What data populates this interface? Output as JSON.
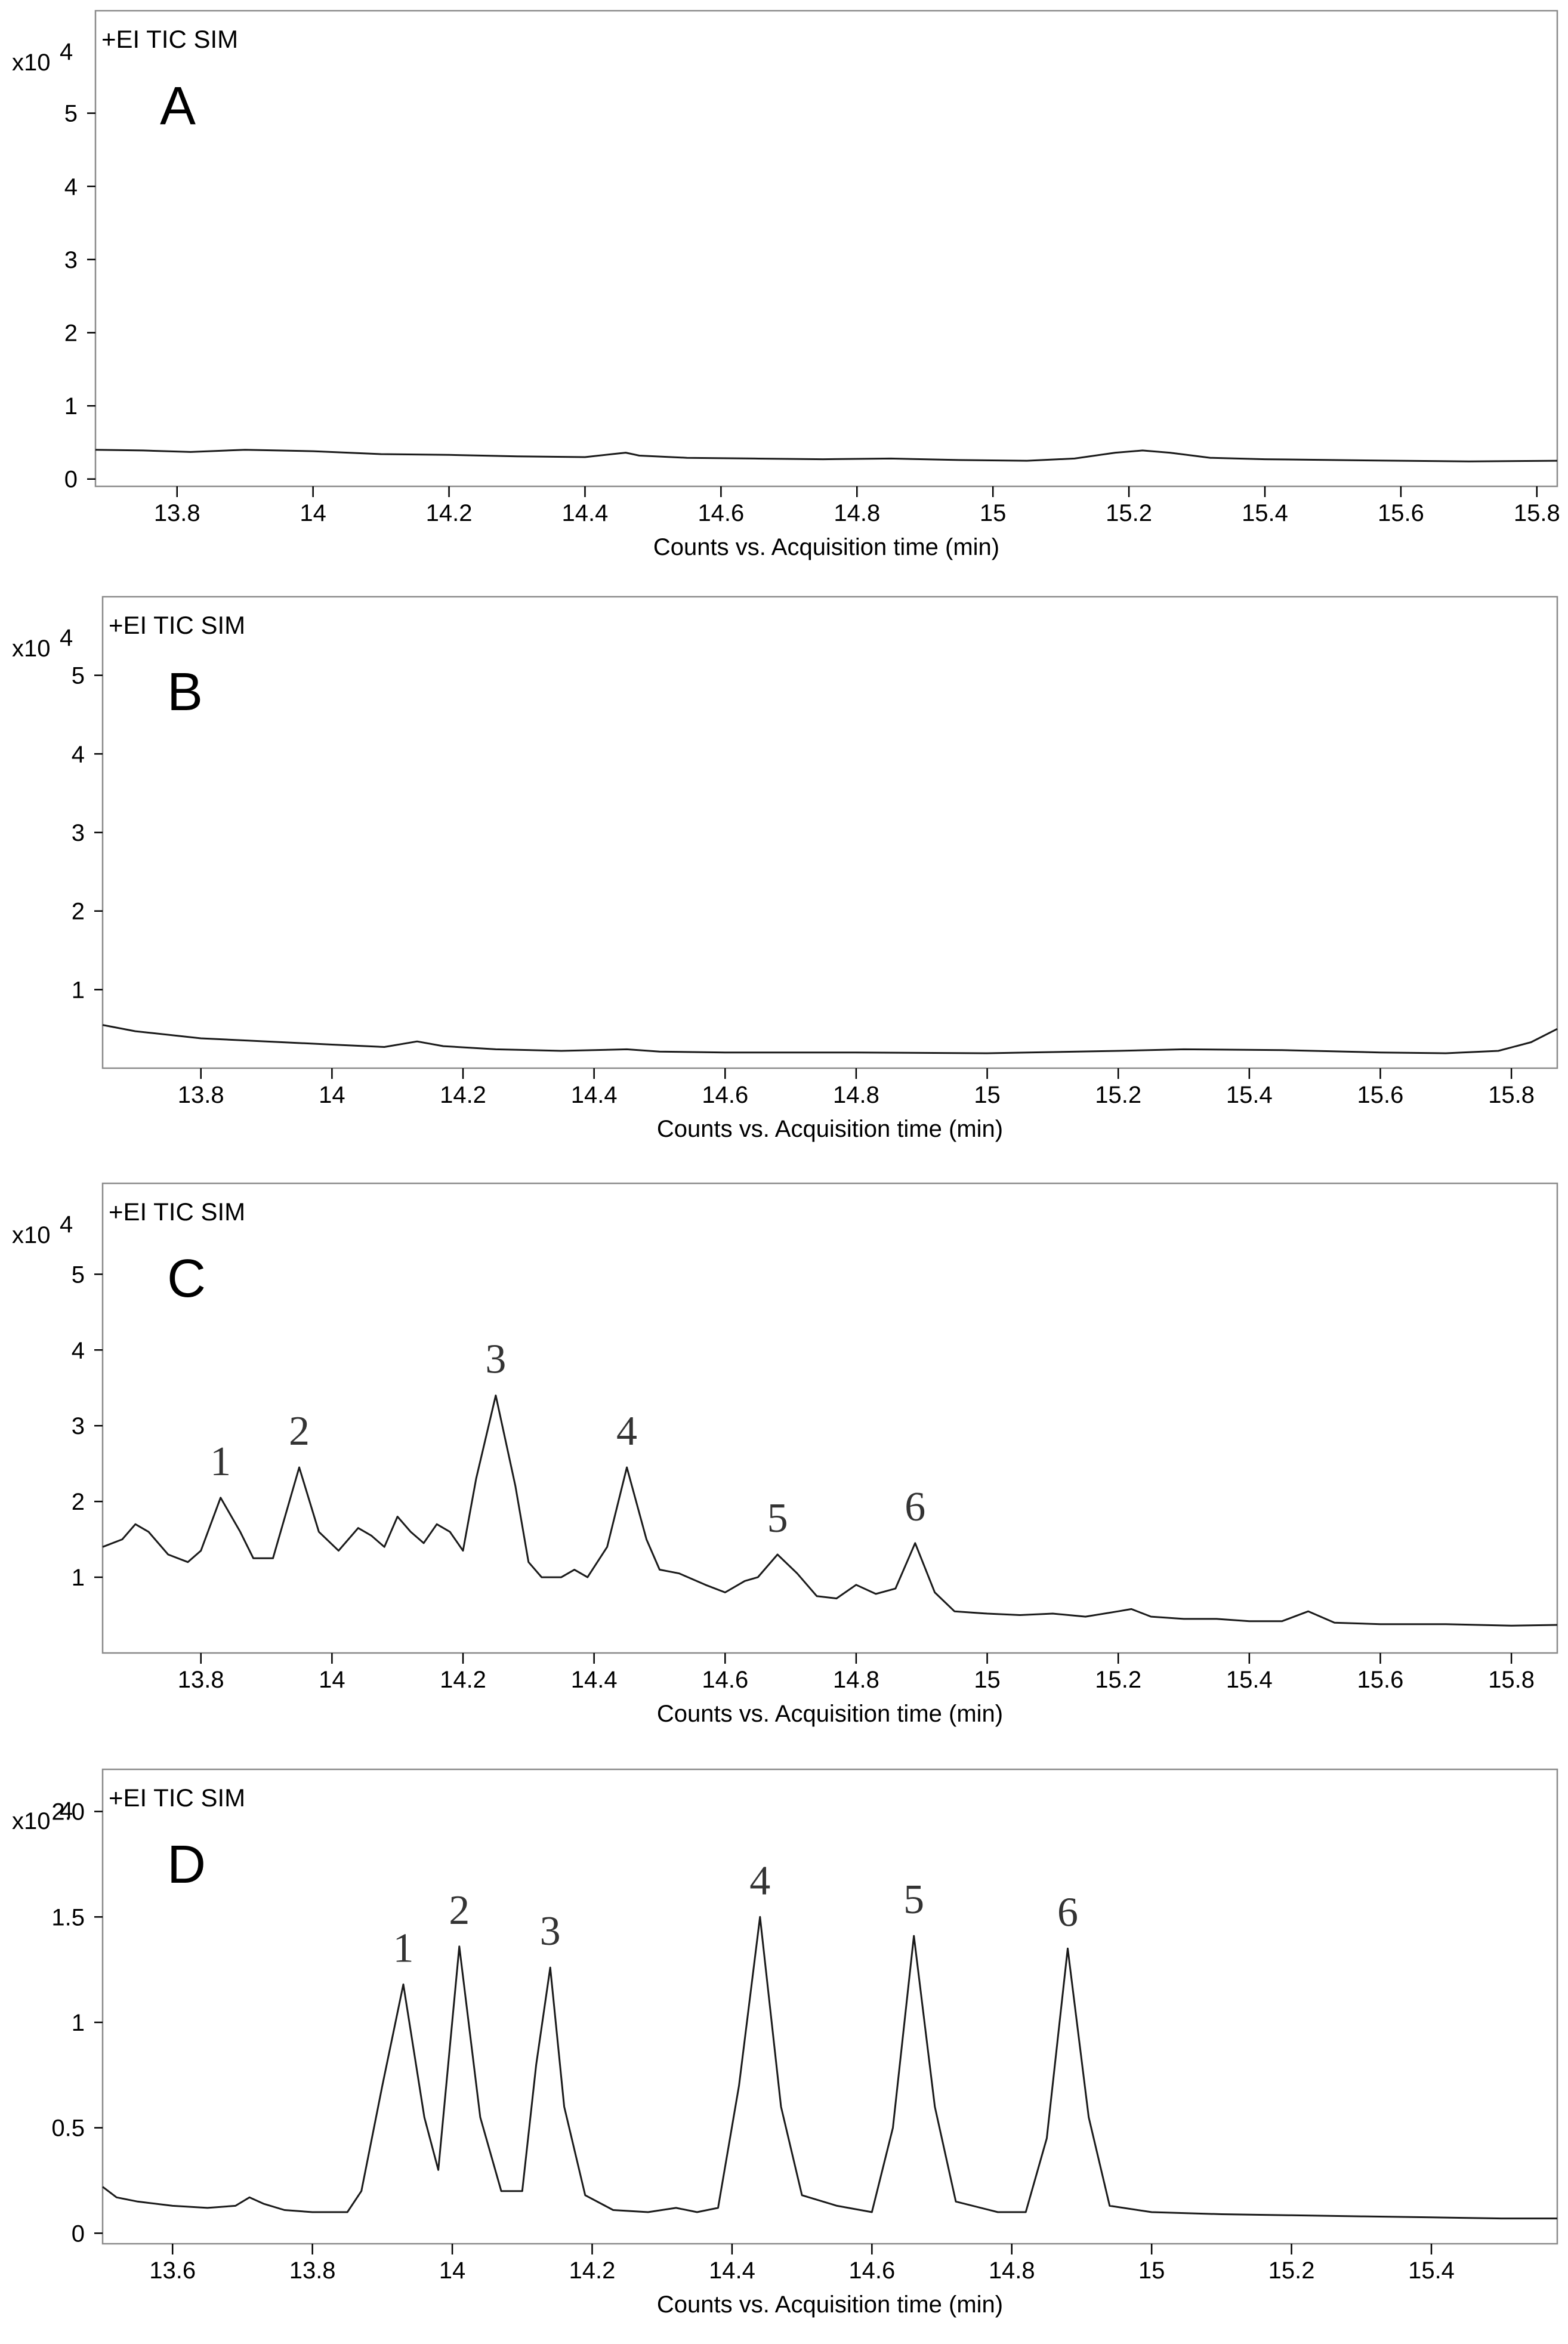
{
  "chart_data": [
    {
      "type": "line",
      "panel_label": "A",
      "header": "+EI TIC SIM",
      "y_multiplier": "x10",
      "y_multiplier_exp": "4",
      "xlabel": "Counts vs. Acquisition time (min)",
      "xlim": [
        13.68,
        15.83
      ],
      "ylim": [
        -0.1,
        6.4
      ],
      "xticks": [
        {
          "v": 13.8,
          "t": "13.8"
        },
        {
          "v": 14.0,
          "t": "14"
        },
        {
          "v": 14.2,
          "t": "14.2"
        },
        {
          "v": 14.4,
          "t": "14.4"
        },
        {
          "v": 14.6,
          "t": "14.6"
        },
        {
          "v": 14.8,
          "t": "14.8"
        },
        {
          "v": 15.0,
          "t": "15"
        },
        {
          "v": 15.2,
          "t": "15.2"
        },
        {
          "v": 15.4,
          "t": "15.4"
        },
        {
          "v": 15.6,
          "t": "15.6"
        },
        {
          "v": 15.8,
          "t": "15.8"
        }
      ],
      "yticks": [
        {
          "v": 0,
          "t": "0"
        },
        {
          "v": 1,
          "t": "1"
        },
        {
          "v": 2,
          "t": "2"
        },
        {
          "v": 3,
          "t": "3"
        },
        {
          "v": 4,
          "t": "4"
        },
        {
          "v": 5,
          "t": "5"
        }
      ],
      "peaks": [],
      "series": [
        {
          "name": "TIC",
          "x": [
            13.68,
            13.75,
            13.82,
            13.9,
            14.0,
            14.1,
            14.2,
            14.3,
            14.4,
            14.44,
            14.46,
            14.48,
            14.55,
            14.65,
            14.75,
            14.85,
            14.95,
            15.05,
            15.12,
            15.18,
            15.22,
            15.26,
            15.32,
            15.4,
            15.5,
            15.6,
            15.7,
            15.83
          ],
          "y": [
            0.4,
            0.39,
            0.37,
            0.4,
            0.38,
            0.34,
            0.33,
            0.31,
            0.3,
            0.34,
            0.36,
            0.32,
            0.29,
            0.28,
            0.27,
            0.28,
            0.26,
            0.25,
            0.28,
            0.36,
            0.39,
            0.36,
            0.29,
            0.27,
            0.26,
            0.25,
            0.24,
            0.25
          ]
        }
      ]
    },
    {
      "type": "line",
      "panel_label": "B",
      "header": "+EI TIC SIM",
      "y_multiplier": "x10",
      "y_multiplier_exp": "4",
      "xlabel": "Counts vs. Acquisition time (min)",
      "xlim": [
        13.65,
        15.87
      ],
      "ylim": [
        0.0,
        6.0
      ],
      "xticks": [
        {
          "v": 13.8,
          "t": "13.8"
        },
        {
          "v": 14.0,
          "t": "14"
        },
        {
          "v": 14.2,
          "t": "14.2"
        },
        {
          "v": 14.4,
          "t": "14.4"
        },
        {
          "v": 14.6,
          "t": "14.6"
        },
        {
          "v": 14.8,
          "t": "14.8"
        },
        {
          "v": 15.0,
          "t": "15"
        },
        {
          "v": 15.2,
          "t": "15.2"
        },
        {
          "v": 15.4,
          "t": "15.4"
        },
        {
          "v": 15.6,
          "t": "15.6"
        },
        {
          "v": 15.8,
          "t": "15.8"
        }
      ],
      "yticks": [
        {
          "v": 1,
          "t": "1"
        },
        {
          "v": 2,
          "t": "2"
        },
        {
          "v": 3,
          "t": "3"
        },
        {
          "v": 4,
          "t": "4"
        },
        {
          "v": 5,
          "t": "5"
        }
      ],
      "peaks": [],
      "series": [
        {
          "name": "TIC",
          "x": [
            13.65,
            13.7,
            13.8,
            13.9,
            14.0,
            14.08,
            14.13,
            14.17,
            14.25,
            14.35,
            14.45,
            14.5,
            14.6,
            14.8,
            15.0,
            15.2,
            15.3,
            15.45,
            15.6,
            15.7,
            15.78,
            15.83,
            15.87
          ],
          "y": [
            0.55,
            0.47,
            0.38,
            0.34,
            0.3,
            0.27,
            0.34,
            0.28,
            0.24,
            0.22,
            0.24,
            0.21,
            0.2,
            0.2,
            0.19,
            0.22,
            0.24,
            0.23,
            0.2,
            0.19,
            0.22,
            0.33,
            0.5
          ]
        }
      ]
    },
    {
      "type": "line",
      "panel_label": "C",
      "header": "+EI TIC SIM",
      "y_multiplier": "x10",
      "y_multiplier_exp": "4",
      "xlabel": "Counts vs. Acquisition time (min)",
      "xlim": [
        13.65,
        15.87
      ],
      "ylim": [
        0.0,
        6.2
      ],
      "xticks": [
        {
          "v": 13.8,
          "t": "13.8"
        },
        {
          "v": 14.0,
          "t": "14"
        },
        {
          "v": 14.2,
          "t": "14.2"
        },
        {
          "v": 14.4,
          "t": "14.4"
        },
        {
          "v": 14.6,
          "t": "14.6"
        },
        {
          "v": 14.8,
          "t": "14.8"
        },
        {
          "v": 15.0,
          "t": "15"
        },
        {
          "v": 15.2,
          "t": "15.2"
        },
        {
          "v": 15.4,
          "t": "15.4"
        },
        {
          "v": 15.6,
          "t": "15.6"
        },
        {
          "v": 15.8,
          "t": "15.8"
        }
      ],
      "yticks": [
        {
          "v": 1,
          "t": "1"
        },
        {
          "v": 2,
          "t": "2"
        },
        {
          "v": 3,
          "t": "3"
        },
        {
          "v": 4,
          "t": "4"
        },
        {
          "v": 5,
          "t": "5"
        }
      ],
      "peaks": [
        {
          "label": "1",
          "x": 13.83,
          "y": 2.05
        },
        {
          "label": "2",
          "x": 13.95,
          "y": 2.45
        },
        {
          "label": "3",
          "x": 14.25,
          "y": 3.4
        },
        {
          "label": "4",
          "x": 14.45,
          "y": 2.45
        },
        {
          "label": "5",
          "x": 14.68,
          "y": 1.3
        },
        {
          "label": "6",
          "x": 14.89,
          "y": 1.45
        }
      ],
      "series": [
        {
          "name": "TIC",
          "x": [
            13.65,
            13.68,
            13.7,
            13.72,
            13.75,
            13.78,
            13.8,
            13.83,
            13.86,
            13.88,
            13.91,
            13.95,
            13.98,
            14.01,
            14.04,
            14.06,
            14.08,
            14.1,
            14.12,
            14.14,
            14.16,
            14.18,
            14.2,
            14.22,
            14.25,
            14.28,
            14.3,
            14.32,
            14.35,
            14.37,
            14.39,
            14.42,
            14.45,
            14.48,
            14.5,
            14.53,
            14.57,
            14.6,
            14.63,
            14.65,
            14.68,
            14.71,
            14.74,
            14.77,
            14.8,
            14.83,
            14.86,
            14.89,
            14.92,
            14.95,
            15.0,
            15.05,
            15.1,
            15.15,
            15.2,
            15.22,
            15.25,
            15.3,
            15.35,
            15.4,
            15.45,
            15.49,
            15.53,
            15.6,
            15.7,
            15.8,
            15.87
          ],
          "y": [
            1.4,
            1.5,
            1.7,
            1.6,
            1.3,
            1.2,
            1.35,
            2.05,
            1.6,
            1.25,
            1.25,
            2.45,
            1.6,
            1.35,
            1.65,
            1.55,
            1.4,
            1.8,
            1.6,
            1.45,
            1.7,
            1.6,
            1.35,
            2.3,
            3.4,
            2.2,
            1.2,
            1.0,
            1.0,
            1.1,
            1.0,
            1.4,
            2.45,
            1.5,
            1.1,
            1.05,
            0.9,
            0.8,
            0.95,
            1.0,
            1.3,
            1.05,
            0.75,
            0.72,
            0.9,
            0.78,
            0.85,
            1.45,
            0.8,
            0.55,
            0.52,
            0.5,
            0.52,
            0.48,
            0.55,
            0.58,
            0.48,
            0.45,
            0.45,
            0.42,
            0.42,
            0.55,
            0.4,
            0.38,
            0.38,
            0.36,
            0.37
          ]
        }
      ]
    },
    {
      "type": "line",
      "panel_label": "D",
      "header": "+EI TIC SIM",
      "y_multiplier": "x10",
      "y_multiplier_exp": "4",
      "xlabel": "Counts vs. Acquisition time (min)",
      "xlim": [
        13.5,
        15.58
      ],
      "ylim": [
        -0.05,
        2.2
      ],
      "xticks": [
        {
          "v": 13.6,
          "t": "13.6"
        },
        {
          "v": 13.8,
          "t": "13.8"
        },
        {
          "v": 14.0,
          "t": "14"
        },
        {
          "v": 14.2,
          "t": "14.2"
        },
        {
          "v": 14.4,
          "t": "14.4"
        },
        {
          "v": 14.6,
          "t": "14.6"
        },
        {
          "v": 14.8,
          "t": "14.8"
        },
        {
          "v": 15.0,
          "t": "15"
        },
        {
          "v": 15.2,
          "t": "15.2"
        },
        {
          "v": 15.4,
          "t": "15.4"
        }
      ],
      "yticks": [
        {
          "v": 0,
          "t": "0"
        },
        {
          "v": 0.5,
          "t": "0.5"
        },
        {
          "v": 1.0,
          "t": "1"
        },
        {
          "v": 1.5,
          "t": "1.5"
        },
        {
          "v": 2.0,
          "t": "2.0"
        }
      ],
      "peaks": [
        {
          "label": "1",
          "x": 13.93,
          "y": 1.18
        },
        {
          "label": "2",
          "x": 14.01,
          "y": 1.36
        },
        {
          "label": "3",
          "x": 14.14,
          "y": 1.26
        },
        {
          "label": "4",
          "x": 14.44,
          "y": 1.5
        },
        {
          "label": "5",
          "x": 14.66,
          "y": 1.41
        },
        {
          "label": "6",
          "x": 14.88,
          "y": 1.35
        }
      ],
      "series": [
        {
          "name": "TIC",
          "x": [
            13.5,
            13.52,
            13.55,
            13.6,
            13.65,
            13.69,
            13.71,
            13.73,
            13.76,
            13.8,
            13.85,
            13.87,
            13.9,
            13.93,
            13.96,
            13.98,
            14.01,
            14.04,
            14.07,
            14.1,
            14.12,
            14.14,
            14.16,
            14.19,
            14.23,
            14.28,
            14.32,
            14.35,
            14.38,
            14.41,
            14.44,
            14.47,
            14.5,
            14.55,
            14.6,
            14.63,
            14.66,
            14.69,
            14.72,
            14.78,
            14.82,
            14.85,
            14.88,
            14.91,
            14.94,
            15.0,
            15.1,
            15.2,
            15.3,
            15.4,
            15.5,
            15.58
          ],
          "y": [
            0.22,
            0.17,
            0.15,
            0.13,
            0.12,
            0.13,
            0.17,
            0.14,
            0.11,
            0.1,
            0.1,
            0.2,
            0.7,
            1.18,
            0.55,
            0.3,
            1.36,
            0.55,
            0.2,
            0.2,
            0.8,
            1.26,
            0.6,
            0.18,
            0.11,
            0.1,
            0.12,
            0.1,
            0.12,
            0.7,
            1.5,
            0.6,
            0.18,
            0.13,
            0.1,
            0.5,
            1.41,
            0.6,
            0.15,
            0.1,
            0.1,
            0.45,
            1.35,
            0.55,
            0.13,
            0.1,
            0.09,
            0.085,
            0.08,
            0.075,
            0.07,
            0.07
          ]
        }
      ]
    }
  ]
}
